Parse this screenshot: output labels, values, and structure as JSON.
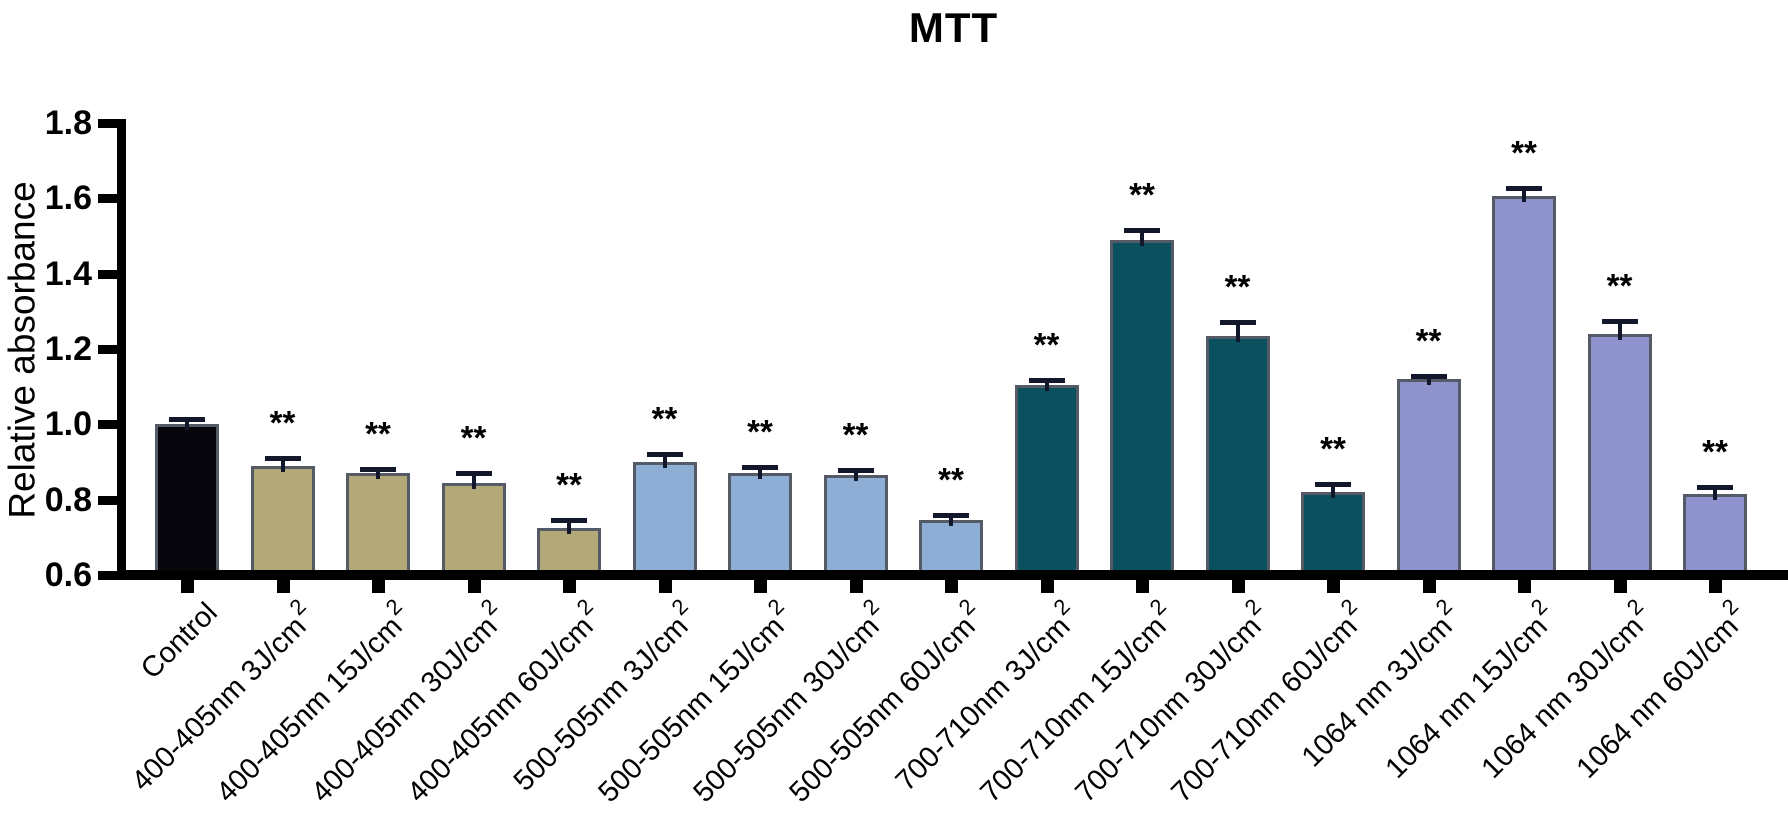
{
  "chart_data": {
    "type": "bar",
    "title": "MTT",
    "xlabel": "",
    "ylabel": "Relative absorbance",
    "ylim": [
      0.6,
      1.8
    ],
    "ytick_labels": [
      "0.6",
      "0.8",
      "1.0",
      "1.2",
      "1.4",
      "1.6",
      "1.8"
    ],
    "ytick_values": [
      0.6,
      0.8,
      1.0,
      1.2,
      1.4,
      1.6,
      1.8
    ],
    "grid": "off",
    "legend": "none",
    "categories": [
      "Control",
      "400-405nm 3J/cm²",
      "400-405nm 15J/cm²",
      "400-405nm 30J/cm²",
      "400-405nm 60J/cm²",
      "500-505nm 3J/cm²",
      "500-505nm 15J/cm²",
      "500-505nm 30J/cm²",
      "500-505nm 60J/cm²",
      "700-710nm 3J/cm²",
      "700-710nm 15J/cm²",
      "700-710nm 30J/cm²",
      "700-710nm 60J/cm²",
      "1064 nm 3J/cm²",
      "1064 nm 15J/cm²",
      "1064 nm 30J/cm²",
      "1064 nm 60J/cm²"
    ],
    "values": [
      1.0,
      0.89,
      0.87,
      0.845,
      0.725,
      0.9,
      0.87,
      0.865,
      0.745,
      1.105,
      1.49,
      1.235,
      0.82,
      1.12,
      1.605,
      1.24,
      0.815
    ],
    "errors": [
      0.015,
      0.02,
      0.012,
      0.025,
      0.022,
      0.02,
      0.018,
      0.015,
      0.015,
      0.012,
      0.025,
      0.038,
      0.022,
      0.008,
      0.022,
      0.035,
      0.018
    ],
    "significance": [
      "",
      "**",
      "**",
      "**",
      "**",
      "**",
      "**",
      "**",
      "**",
      "**",
      "**",
      "**",
      "**",
      "**",
      "**",
      "**",
      "**"
    ],
    "bar_colors": [
      "#06060c",
      "#b3a878",
      "#b3a878",
      "#b3a878",
      "#b3a878",
      "#8eaed6",
      "#8eaed6",
      "#8eaed6",
      "#8eaed6",
      "#0b505f",
      "#0b505f",
      "#0b505f",
      "#0b505f",
      "#8e93ce",
      "#8e93ce",
      "#8e93ce",
      "#8e93ce"
    ],
    "bar_border_color": "#555b66",
    "error_bar_color": "#12172b",
    "axis_color": "#000000",
    "text_color": "#000000"
  }
}
